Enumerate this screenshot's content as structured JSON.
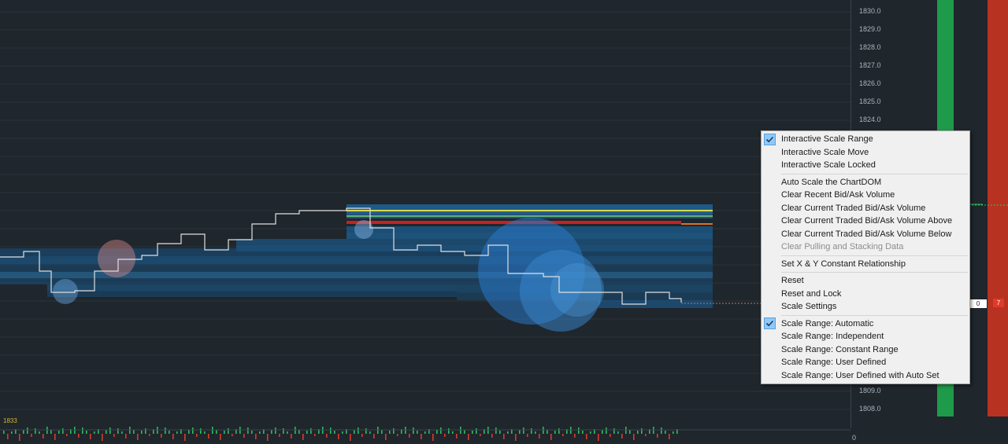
{
  "colors": {
    "background": "#1f262c",
    "grid": "#2b343b",
    "bid_bar": "#1f9a4a",
    "ask_bar": "#b83222",
    "price_line": "#e0e0e0",
    "volume_profile": "#1e6fae",
    "menu_background": "#f0f0f0",
    "check_highlight": "#90c8f6"
  },
  "price_axis": {
    "ticks": [
      "1830.0",
      "1829.0",
      "1828.0",
      "1827.0",
      "1826.0",
      "1825.0",
      "1824.0",
      "1809.0",
      "1808.0"
    ],
    "bottom_label": "0"
  },
  "lower_panel": {
    "label": "1833"
  },
  "dom": {
    "last_price_tag": "0",
    "ask_tag": "7"
  },
  "context_menu": {
    "groups": [
      [
        {
          "label": "Interactive Scale Range",
          "checked": true,
          "disabled": false
        },
        {
          "label": "Interactive Scale Move",
          "checked": false,
          "disabled": false
        },
        {
          "label": "Interactive Scale Locked",
          "checked": false,
          "disabled": false
        }
      ],
      [
        {
          "label": "Auto Scale the ChartDOM",
          "checked": false,
          "disabled": false
        },
        {
          "label": "Clear Recent Bid/Ask Volume",
          "checked": false,
          "disabled": false
        },
        {
          "label": "Clear Current Traded Bid/Ask Volume",
          "checked": false,
          "disabled": false
        },
        {
          "label": "Clear Current Traded Bid/Ask Volume Above",
          "checked": false,
          "disabled": false
        },
        {
          "label": "Clear Current Traded Bid/Ask Volume Below",
          "checked": false,
          "disabled": false
        },
        {
          "label": "Clear Pulling and Stacking Data",
          "checked": false,
          "disabled": true
        }
      ],
      [
        {
          "label": "Set X & Y Constant Relationship",
          "checked": false,
          "disabled": false
        }
      ],
      [
        {
          "label": "Reset",
          "checked": false,
          "disabled": false
        },
        {
          "label": "Reset and Lock",
          "checked": false,
          "disabled": false
        },
        {
          "label": "Scale Settings",
          "checked": false,
          "disabled": false
        }
      ],
      [
        {
          "label": "Scale Range: Automatic",
          "checked": true,
          "disabled": false
        },
        {
          "label": "Scale Range: Independent",
          "checked": false,
          "disabled": false
        },
        {
          "label": "Scale Range: Constant Range",
          "checked": false,
          "disabled": false
        },
        {
          "label": "Scale Range: User Defined",
          "checked": false,
          "disabled": false
        },
        {
          "label": "Scale Range: User Defined with Auto Set",
          "checked": false,
          "disabled": false
        }
      ]
    ]
  }
}
